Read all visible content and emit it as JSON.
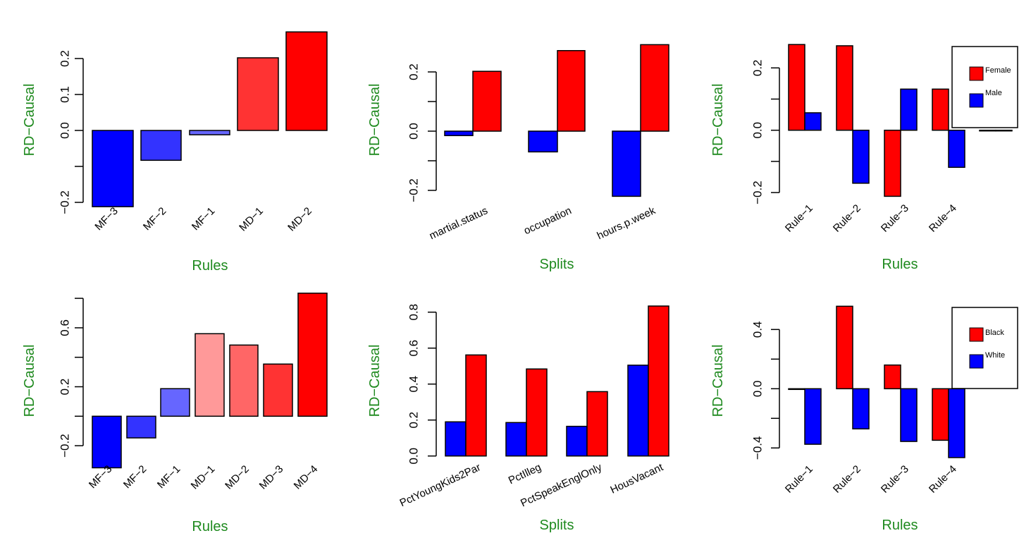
{
  "chart_data": [
    {
      "type": "bar",
      "panel": "top-left",
      "title": "",
      "xlabel": "Rules",
      "ylabel": "RD-Causal",
      "ylim": [
        -0.2,
        0.2
      ],
      "yticks": [
        -0.2,
        -0.1,
        0.0,
        0.1,
        0.2
      ],
      "ytick_labels": [
        "-0.2",
        "",
        "0.0",
        "0.1",
        "0.2"
      ],
      "categories": [
        "MF-3",
        "MF-2",
        "MF-1",
        "MD-1",
        "MD-2"
      ],
      "values": [
        -0.212,
        -0.083,
        -0.012,
        0.202,
        0.274
      ],
      "colors": [
        "#0000FF",
        "#3333FF",
        "#6666FF",
        "#FF3333",
        "#FF0000"
      ],
      "label_rotation": "45deg"
    },
    {
      "type": "bar",
      "panel": "top-middle",
      "grouped": true,
      "xlabel": "Splits",
      "ylabel": "RD-Causal",
      "ylim": [
        -0.2,
        0.2
      ],
      "yticks": [
        -0.2,
        -0.1,
        0.0,
        0.1,
        0.2
      ],
      "ytick_labels": [
        "-0.2",
        "",
        "0.0",
        "",
        "0.2"
      ],
      "categories": [
        "martial.status",
        "occupation",
        "hours.p.week"
      ],
      "series": [
        {
          "name": "blue",
          "color": "#0000FF",
          "values": [
            -0.015,
            -0.07,
            -0.22
          ]
        },
        {
          "name": "red",
          "color": "#FF0000",
          "values": [
            0.202,
            0.272,
            0.292
          ]
        }
      ],
      "label_rotation": "25deg"
    },
    {
      "type": "bar",
      "panel": "top-right",
      "grouped": true,
      "xlabel": "Rules",
      "ylabel": "RD-Causal",
      "ylim": [
        -0.2,
        0.2
      ],
      "yticks": [
        -0.2,
        -0.1,
        0.0,
        0.1,
        0.2
      ],
      "ytick_labels": [
        "-0.2",
        "",
        "0.0",
        "",
        "0.2"
      ],
      "categories": [
        "Rule-1",
        "Rule-2",
        "Rule-3",
        "Rule-4",
        ""
      ],
      "series": [
        {
          "name": "Female",
          "color": "#FF0000",
          "values": [
            0.275,
            0.271,
            -0.212,
            0.132,
            0.0
          ]
        },
        {
          "name": "Male",
          "color": "#0000FF",
          "values": [
            0.056,
            -0.17,
            0.132,
            -0.119,
            0.0
          ]
        }
      ],
      "legend": {
        "position": "top-right",
        "entries": [
          "Female",
          "Male"
        ]
      },
      "label_rotation": "45deg"
    },
    {
      "type": "bar",
      "panel": "bottom-left",
      "xlabel": "Rules",
      "ylabel": "RD-Causal",
      "ylim": [
        -0.2,
        0.8
      ],
      "yticks": [
        -0.2,
        0.0,
        0.2,
        0.4,
        0.6,
        0.8
      ],
      "ytick_labels": [
        "-0.2",
        "",
        "0.2",
        "",
        "0.6",
        ""
      ],
      "categories": [
        "MF-3",
        "MF-2",
        "MF-1",
        "MD-1",
        "MD-2",
        "MD-3",
        "MD-4"
      ],
      "values": [
        -0.35,
        -0.147,
        0.187,
        0.56,
        0.483,
        0.354,
        0.835
      ],
      "colors": [
        "#0000FF",
        "#3333FF",
        "#6666FF",
        "#FF9999",
        "#FF6666",
        "#FF3333",
        "#FF0000"
      ],
      "label_rotation": "45deg"
    },
    {
      "type": "bar",
      "panel": "bottom-middle",
      "grouped": true,
      "xlabel": "Splits",
      "ylabel": "RD-Causal",
      "ylim": [
        0.0,
        0.8
      ],
      "yticks": [
        0.0,
        0.2,
        0.4,
        0.6,
        0.8
      ],
      "ytick_labels": [
        "0.0",
        "0.2",
        "0.4",
        "0.6",
        "0.8"
      ],
      "categories": [
        "PctYoungKids2Par",
        "PctIlleg",
        "PctSpeakEnglOnly",
        "HousVacant"
      ],
      "series": [
        {
          "name": "blue",
          "color": "#0000FF",
          "values": [
            0.19,
            0.186,
            0.165,
            0.505
          ]
        },
        {
          "name": "red",
          "color": "#FF0000",
          "values": [
            0.562,
            0.484,
            0.358,
            0.834
          ]
        }
      ],
      "label_rotation": "25deg"
    },
    {
      "type": "bar",
      "panel": "bottom-right",
      "grouped": true,
      "xlabel": "Rules",
      "ylabel": "RD-Causal",
      "ylim": [
        -0.4,
        0.4
      ],
      "yticks": [
        -0.4,
        -0.2,
        0.0,
        0.2,
        0.4
      ],
      "ytick_labels": [
        "-0.4",
        "",
        "0.0",
        "",
        "0.4"
      ],
      "categories": [
        "Rule-1",
        "Rule-2",
        "Rule-3",
        "Rule-4"
      ],
      "series": [
        {
          "name": "Black",
          "color": "#FF0000",
          "values": [
            0.0,
            0.557,
            0.16,
            -0.348
          ]
        },
        {
          "name": "White",
          "color": "#0000FF",
          "values": [
            -0.375,
            -0.271,
            -0.356,
            -0.465
          ]
        }
      ],
      "legend": {
        "position": "top-right",
        "entries": [
          "Black",
          "White"
        ]
      },
      "label_rotation": "45deg"
    }
  ]
}
